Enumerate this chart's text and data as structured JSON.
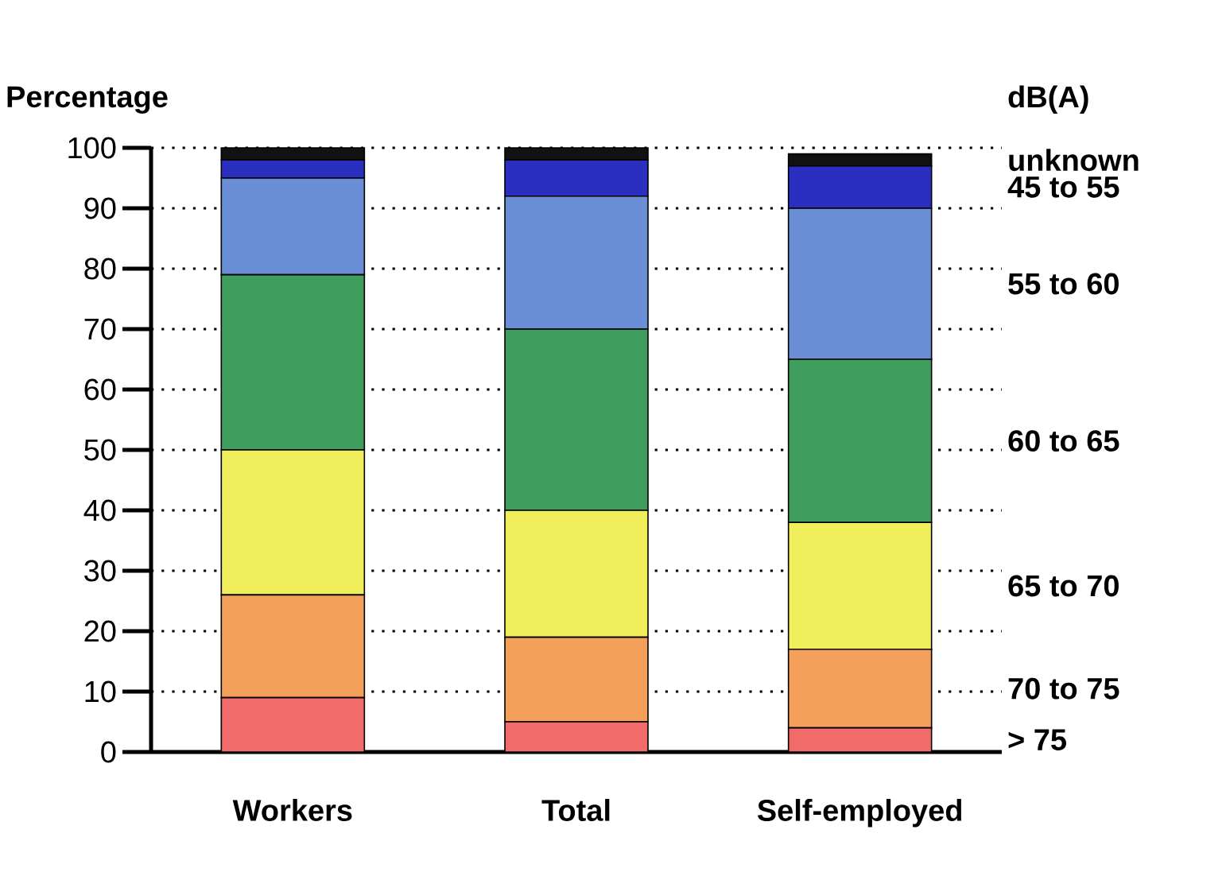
{
  "chart_data": {
    "type": "bar",
    "stacked": true,
    "ylabel": "Percentage",
    "legend_title": "dB(A)",
    "categories": [
      "Workers",
      "Total",
      "Self-employed"
    ],
    "series": [
      {
        "name": "> 75",
        "color": "#f26b6b",
        "values": [
          9,
          5,
          4
        ]
      },
      {
        "name": "70 to 75",
        "color": "#f5a05a",
        "values": [
          17,
          14,
          13
        ]
      },
      {
        "name": "65 to 70",
        "color": "#f0ee5a",
        "values": [
          24,
          21,
          21
        ]
      },
      {
        "name": "60 to 65",
        "color": "#3f9e5e",
        "values": [
          29,
          30,
          27
        ]
      },
      {
        "name": "55 to 60",
        "color": "#6a8fd6",
        "values": [
          16,
          22,
          25
        ]
      },
      {
        "name": "45 to 55",
        "color": "#2a2fc0",
        "values": [
          3,
          6,
          7
        ]
      },
      {
        "name": "unknown",
        "color": "#111111",
        "values": [
          2,
          2,
          2
        ]
      }
    ],
    "ylim": [
      0,
      100
    ],
    "yticks": [
      0,
      10,
      20,
      30,
      40,
      50,
      60,
      70,
      80,
      90,
      100
    ],
    "grid": "y",
    "legend": "right"
  }
}
